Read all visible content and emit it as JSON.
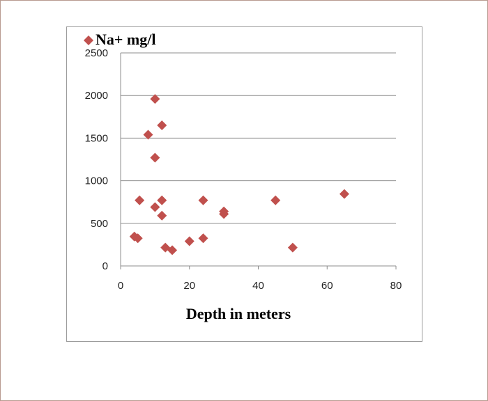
{
  "chart_data": {
    "type": "scatter",
    "title": "",
    "xlabel": "Depth in meters",
    "ylabel": "",
    "xlim": [
      0,
      80
    ],
    "ylim": [
      0,
      2500
    ],
    "x_ticks": [
      "0",
      "20",
      "40",
      "60",
      "80"
    ],
    "y_ticks": [
      "0",
      "500",
      "1000",
      "1500",
      "2000",
      "2500"
    ],
    "grid": "horizontal",
    "legend_position": "top-left",
    "marker": "diamond",
    "series": [
      {
        "name": "Na+ mg/l",
        "color": "#c0504d",
        "x": [
          4,
          5,
          5.5,
          8,
          10,
          10,
          10,
          12,
          12,
          12,
          13,
          15,
          20,
          24,
          24,
          30,
          30,
          45,
          50,
          65
        ],
        "y": [
          345,
          325,
          770,
          1540,
          1960,
          1270,
          690,
          1650,
          770,
          590,
          215,
          185,
          290,
          325,
          770,
          640,
          610,
          770,
          215,
          845
        ]
      }
    ]
  }
}
